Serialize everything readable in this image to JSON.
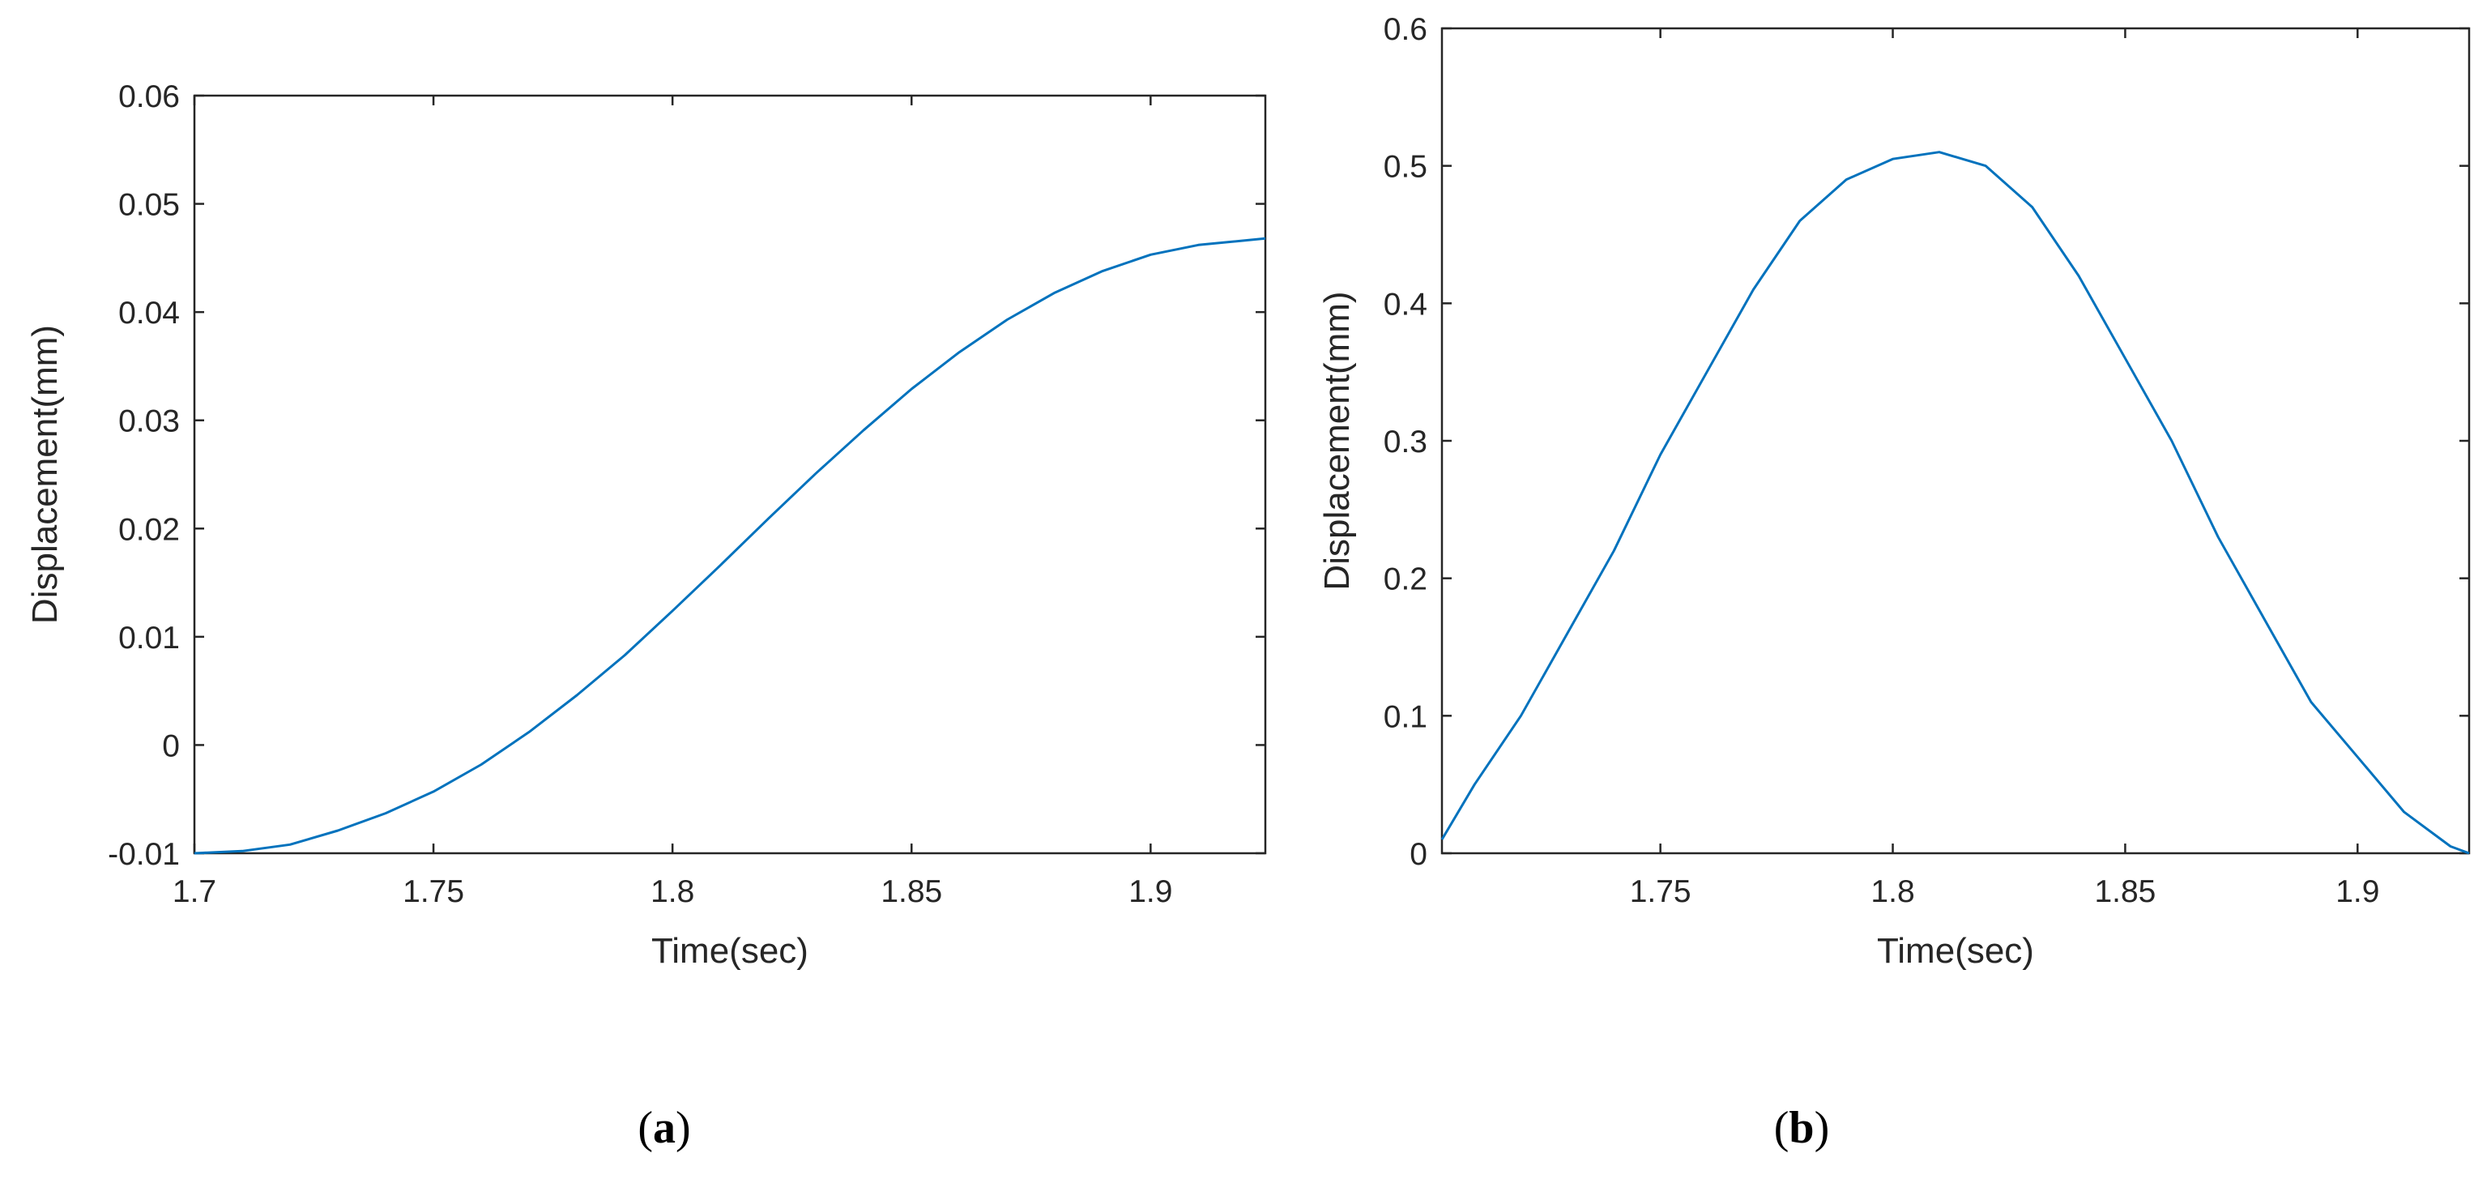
{
  "colors": {
    "series": "#0072BD",
    "axes": "#262626"
  },
  "panels": [
    {
      "label": "(a)",
      "label_letter": "a",
      "chart_data": {
        "type": "line",
        "title": "",
        "xlabel": "Time(sec)",
        "ylabel": "Displacement(mm)",
        "xlim": [
          1.7,
          1.924
        ],
        "ylim": [
          -0.01,
          0.06
        ],
        "xticks": [
          1.7,
          1.75,
          1.8,
          1.85,
          1.9
        ],
        "xtick_labels": [
          "1.7",
          "1.75",
          "1.8",
          "1.85",
          "1.9"
        ],
        "yticks": [
          -0.01,
          0,
          0.01,
          0.02,
          0.03,
          0.04,
          0.05,
          0.06
        ],
        "ytick_labels": [
          "-0.01",
          "0",
          "0.01",
          "0.02",
          "0.03",
          "0.04",
          "0.05",
          "0.06"
        ],
        "grid": false,
        "series": [
          {
            "x": [
              1.7,
              1.71,
              1.72,
              1.73,
              1.74,
              1.75,
              1.76,
              1.77,
              1.78,
              1.79,
              1.8,
              1.81,
              1.82,
              1.83,
              1.84,
              1.85,
              1.86,
              1.87,
              1.88,
              1.89,
              1.9,
              1.91,
              1.924
            ],
            "y": [
              -0.01,
              -0.0098,
              -0.0092,
              -0.0079,
              -0.0063,
              -0.0043,
              -0.0018,
              0.0012,
              0.0046,
              0.0083,
              0.0124,
              0.0166,
              0.0209,
              0.0251,
              0.0291,
              0.0329,
              0.0363,
              0.0393,
              0.0418,
              0.0438,
              0.0453,
              0.0462,
              0.0468
            ]
          }
        ]
      }
    },
    {
      "label": "(b)",
      "label_letter": "b",
      "chart_data": {
        "type": "line",
        "title": "",
        "xlabel": "Time(sec)",
        "ylabel": "Displacement(mm)",
        "xlim": [
          1.703,
          1.924
        ],
        "ylim": [
          0,
          0.6
        ],
        "xticks": [
          1.75,
          1.8,
          1.85,
          1.9
        ],
        "xtick_labels": [
          "1.75",
          "1.8",
          "1.85",
          "1.9"
        ],
        "yticks": [
          0,
          0.1,
          0.2,
          0.3,
          0.4,
          0.5,
          0.6
        ],
        "ytick_labels": [
          "0",
          "0.1",
          "0.2",
          "0.3",
          "0.4",
          "0.5",
          "0.6"
        ],
        "grid": false,
        "series": [
          {
            "x": [
              1.703,
              1.71,
              1.72,
              1.73,
              1.74,
              1.75,
              1.76,
              1.77,
              1.78,
              1.79,
              1.8,
              1.81,
              1.815,
              1.82,
              1.83,
              1.84,
              1.85,
              1.86,
              1.87,
              1.88,
              1.89,
              1.9,
              1.91,
              1.92,
              1.924
            ],
            "y": [
              0.01,
              0.05,
              0.1,
              0.16,
              0.22,
              0.29,
              0.35,
              0.41,
              0.46,
              0.49,
              0.505,
              0.51,
              0.505,
              0.5,
              0.47,
              0.42,
              0.36,
              0.3,
              0.23,
              0.17,
              0.11,
              0.07,
              0.03,
              0.005,
              0.0
            ]
          }
        ]
      }
    }
  ]
}
